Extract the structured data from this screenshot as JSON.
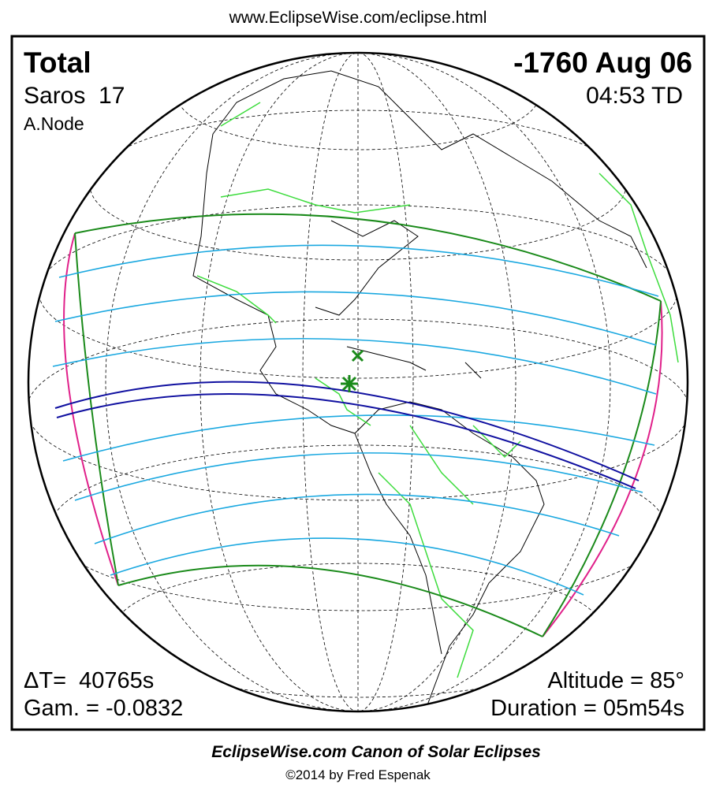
{
  "header": {
    "url": "www.EclipseWise.com/eclipse.html"
  },
  "eclipse": {
    "type": "Total",
    "date": "-1760 Aug 06",
    "saros": "Saros  17",
    "time": "04:53 TD",
    "node": "A.Node",
    "delta_t": "ΔT=  40765s",
    "gamma": "Gam. = -0.0832",
    "altitude": "Altitude = 85°",
    "duration": "Duration = 05m54s"
  },
  "footer": {
    "title": "EclipseWise.com Canon of Solar Eclipses",
    "copyright": "©2014 by Fred Espenak"
  }
}
